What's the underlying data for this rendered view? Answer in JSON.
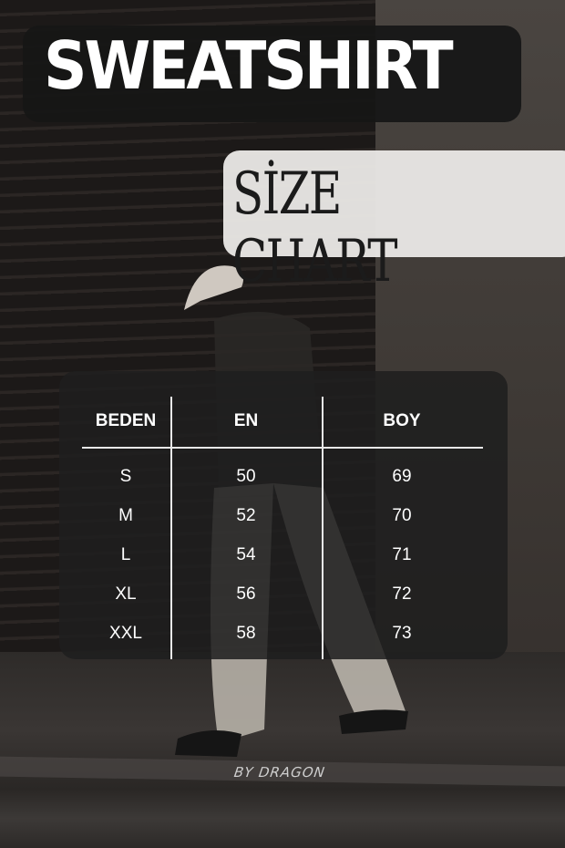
{
  "header": {
    "title": "SWEATSHIRT",
    "subtitle": "SİZE CHART"
  },
  "table": {
    "columns": [
      "BEDEN",
      "EN",
      "BOY"
    ],
    "rows": [
      [
        "S",
        "50",
        "69"
      ],
      [
        "M",
        "52",
        "70"
      ],
      [
        "L",
        "54",
        "71"
      ],
      [
        "XL",
        "56",
        "72"
      ],
      [
        "XXL",
        "58",
        "73"
      ]
    ]
  },
  "footer": {
    "signature": "BY DRAGON"
  }
}
